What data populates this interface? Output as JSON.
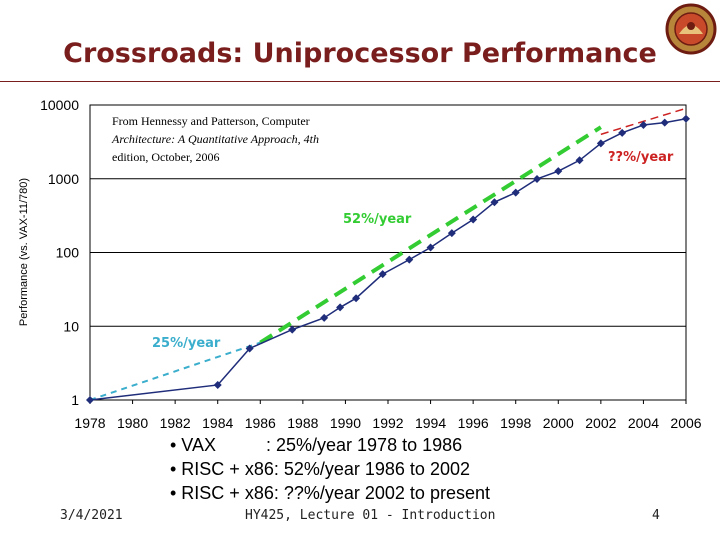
{
  "slide": {
    "title": "Crossroads: Uniprocessor Performance",
    "reference": {
      "line1": "From Hennessy and Patterson, Computer",
      "line2": "Architecture: A Quantitative Approach, 4th",
      "line3": "edition, October, 2006"
    },
    "bullets": [
      "• VAX          : 25%/year 1978 to 1986",
      "• RISC + x86: 52%/year 1986 to 2002",
      "• RISC + x86: ??%/year 2002 to present"
    ],
    "footer": {
      "date": "3/4/2021",
      "course": "HY425, Lecture 01 - Introduction",
      "page": "4"
    }
  },
  "chart_data": {
    "type": "line",
    "scale": "log",
    "ylabel": "Performance (vs. VAX-11/780)",
    "xlabel": "",
    "xlim": [
      1978,
      2006
    ],
    "ylim": [
      1,
      10000
    ],
    "x_ticks": [
      "1978",
      "1980",
      "1982",
      "1984",
      "1986",
      "1988",
      "1990",
      "1992",
      "1994",
      "1996",
      "1998",
      "2000",
      "2002",
      "2004",
      "2006"
    ],
    "y_ticks": [
      "1",
      "10",
      "100",
      "1000",
      "10000"
    ],
    "grid": "horizontal",
    "series": [
      {
        "name": "Performance",
        "color": "#1f2d7a",
        "points": [
          [
            1978,
            1
          ],
          [
            1984,
            1.6
          ],
          [
            1985.5,
            5
          ],
          [
            1987.5,
            9
          ],
          [
            1989,
            13
          ],
          [
            1989.75,
            18
          ],
          [
            1990.5,
            24
          ],
          [
            1991.75,
            51
          ],
          [
            1993,
            80
          ],
          [
            1994,
            117
          ],
          [
            1995,
            183
          ],
          [
            1996,
            280
          ],
          [
            1997,
            481
          ],
          [
            1998,
            649
          ],
          [
            1999,
            993
          ],
          [
            2000,
            1267
          ],
          [
            2001,
            1779
          ],
          [
            2002,
            3016
          ],
          [
            2003,
            4195
          ],
          [
            2004,
            5364
          ],
          [
            2005,
            5764
          ],
          [
            2006,
            6505
          ]
        ]
      }
    ],
    "trend_lines": [
      {
        "label": "25%/year",
        "color": "#3aaecc",
        "from": [
          1978,
          1
        ],
        "to": [
          1986,
          6
        ]
      },
      {
        "label": "52%/year",
        "color": "#33cc33",
        "from": [
          1986,
          6
        ],
        "to": [
          2002,
          5000
        ]
      },
      {
        "label": "??%/year",
        "color": "#cc2222",
        "from": [
          2002,
          4000
        ],
        "to": [
          2006,
          9000
        ]
      }
    ],
    "annotations": [
      {
        "text": "25%/year",
        "color": "#3aaecc"
      },
      {
        "text": "52%/year",
        "color": "#33cc33"
      },
      {
        "text": "??%/year",
        "color": "#cc2222"
      }
    ],
    "colors": {
      "title": "#7a1d1d",
      "axis": "#000000",
      "grid": "#000000"
    }
  }
}
